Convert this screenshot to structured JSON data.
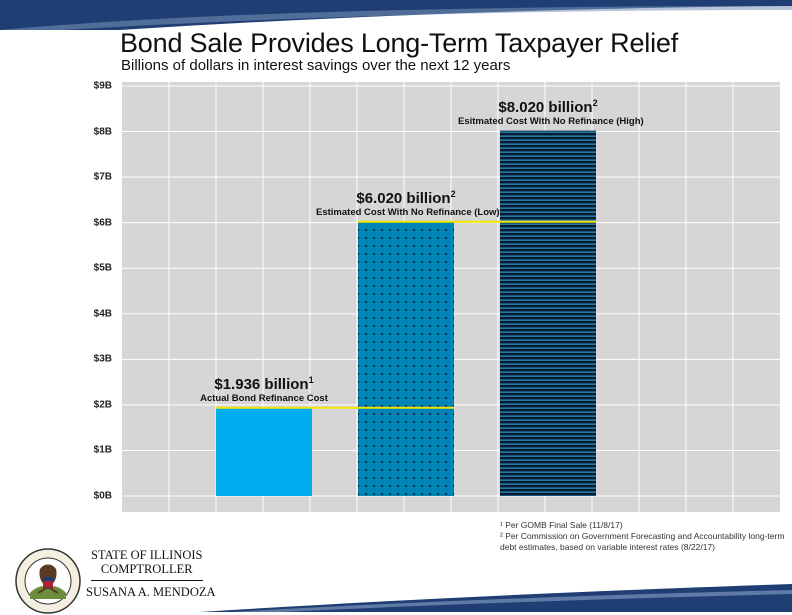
{
  "header": {
    "title": "Bond Sale Provides Long-Term Taxpayer Relief",
    "subtitle": "Billions of dollars in interest savings over the next 12 years"
  },
  "colors": {
    "band": "#1f3e73",
    "plot_bg": "#d6d6d6",
    "bar_actual": "#00aeef",
    "bar_low": "#0085b8",
    "bar_high": "#0a1a33",
    "reference_line": "#f2e600"
  },
  "chart_data": {
    "type": "bar",
    "categories": [
      "Actual Bond Refinance Cost",
      "Estimated Cost With No Refinance (Low)",
      "Esitmated Cost With No Refinance (High)"
    ],
    "values": [
      1.936,
      6.02,
      8.02
    ],
    "value_labels": [
      "$1.936 billion",
      "$6.020 billion",
      "$8.020 billion"
    ],
    "value_footnote_marks": [
      "1",
      "2",
      "2"
    ],
    "y_ticks": [
      "$0B",
      "$1B",
      "$2B",
      "$3B",
      "$4B",
      "$5B",
      "$6B",
      "$7B",
      "$8B",
      "$9B"
    ],
    "ylim": [
      0,
      9
    ],
    "grid": true,
    "xlabel": "",
    "ylabel": ""
  },
  "footnotes": [
    "¹ Per GOMB Final Sale (11/8/17)",
    "² Per Commission on Government Forecasting and Accountability long-term debt estimates, based on variable interest rates (8/22/17)"
  ],
  "logo": {
    "line1": "STATE OF ILLINOIS",
    "line2": "COMPTROLLER",
    "line3": "SUSANA A. MENDOZA",
    "seal_text": "SEAL OF THE STATE OF ILLINOIS"
  }
}
